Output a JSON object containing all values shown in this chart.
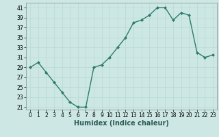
{
  "x": [
    0,
    1,
    2,
    3,
    4,
    5,
    6,
    7,
    8,
    9,
    10,
    11,
    12,
    13,
    14,
    15,
    16,
    17,
    18,
    19,
    20,
    21,
    22,
    23
  ],
  "y": [
    29,
    30,
    28,
    26,
    24,
    22,
    21,
    21,
    29,
    29.5,
    31,
    33,
    35,
    38,
    38.5,
    39.5,
    41,
    41,
    38.5,
    40,
    39.5,
    32,
    31,
    31.5
  ],
  "line_color": "#2d7a6e",
  "marker": "D",
  "marker_size": 2.0,
  "bg_color": "#cde8e4",
  "grid_color": "#b8d8d4",
  "xlabel": "Humidex (Indice chaleur)",
  "ylim": [
    20.5,
    42
  ],
  "xlim": [
    -0.5,
    23.5
  ],
  "yticks": [
    21,
    23,
    25,
    27,
    29,
    31,
    33,
    35,
    37,
    39,
    41
  ],
  "xticks": [
    0,
    1,
    2,
    3,
    4,
    5,
    6,
    7,
    8,
    9,
    10,
    11,
    12,
    13,
    14,
    15,
    16,
    17,
    18,
    19,
    20,
    21,
    22,
    23
  ],
  "xlabel_fontsize": 7,
  "tick_fontsize": 5.5,
  "line_width": 1.0
}
